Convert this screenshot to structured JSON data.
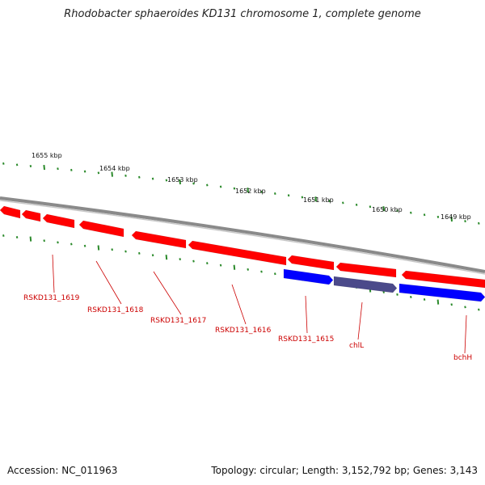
{
  "title": "Rhodobacter sphaeroides KD131 chromosome 1, complete genome",
  "footer": {
    "accession": "Accession: NC_011963",
    "summary": "Topology: circular; Length: 3,152,792 bp; Genes: 3,143"
  },
  "colors": {
    "backbone": "#8a8a8a",
    "forward_gene": "#ff0000",
    "reverse_gene": "#0000ff",
    "highlight_gene": "#4b4a8a",
    "tick": "#2b8a2b",
    "label": "#cc0000"
  },
  "scale_labels": [
    {
      "kbp": 1655,
      "text": "1655 kbp"
    },
    {
      "kbp": 1654,
      "text": "1654 kbp"
    },
    {
      "kbp": 1653,
      "text": "1653 kbp"
    },
    {
      "kbp": 1652,
      "text": "1652 kbp"
    },
    {
      "kbp": 1651,
      "text": "1651 kbp"
    },
    {
      "kbp": 1650,
      "text": "1650 kbp"
    },
    {
      "kbp": 1649,
      "text": "1649 kbp"
    }
  ],
  "genes": [
    {
      "label": "RSKD131_1619",
      "strand": "forward"
    },
    {
      "label": "RSKD131_1618",
      "strand": "forward"
    },
    {
      "label": "RSKD131_1617",
      "strand": "forward"
    },
    {
      "label": "RSKD131_1616",
      "strand": "forward"
    },
    {
      "label": "RSKD131_1615",
      "strand": "reverse"
    },
    {
      "label": "chlL",
      "strand": "reverse"
    },
    {
      "label": "bchH",
      "strand": "reverse"
    }
  ]
}
